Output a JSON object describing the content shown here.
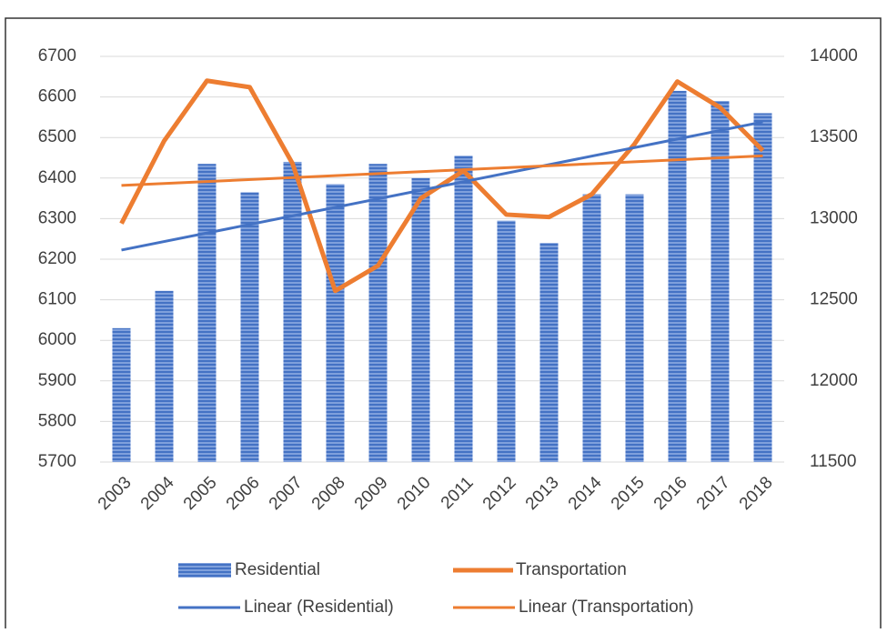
{
  "chart_data": {
    "type": "bar-line",
    "categories": [
      "2003",
      "2004",
      "2005",
      "2006",
      "2007",
      "2008",
      "2009",
      "2010",
      "2011",
      "2012",
      "2013",
      "2014",
      "2015",
      "2016",
      "2017",
      "2018"
    ],
    "series": [
      {
        "name": "Residential",
        "type": "bar",
        "color": "#4472c4",
        "axis": "y",
        "values": [
          6030,
          6122,
          6435,
          6365,
          6440,
          6385,
          6435,
          6400,
          6455,
          6295,
          6240,
          6360,
          6360,
          6615,
          6590,
          6560
        ],
        "trendline": {
          "name": "Linear (Residential)",
          "color": "#4472c4"
        }
      },
      {
        "name": "Transportation",
        "type": "line",
        "color": "#ed7d31",
        "axis": "y2",
        "values": [
          12970,
          13480,
          13850,
          13810,
          13340,
          12555,
          12710,
          13125,
          13295,
          13025,
          13010,
          13150,
          13460,
          13845,
          13685,
          13420
        ],
        "trendline": {
          "name": "Linear (Transportation)",
          "color": "#ed7d31"
        }
      }
    ],
    "ylim": [
      5700,
      6700
    ],
    "yticks": [
      5700,
      5800,
      5900,
      6000,
      6100,
      6200,
      6300,
      6400,
      6500,
      6600,
      6700
    ],
    "y2lim": [
      11500,
      14000
    ],
    "y2ticks": [
      11500,
      12000,
      12500,
      13000,
      13500,
      14000
    ],
    "grid": true
  }
}
